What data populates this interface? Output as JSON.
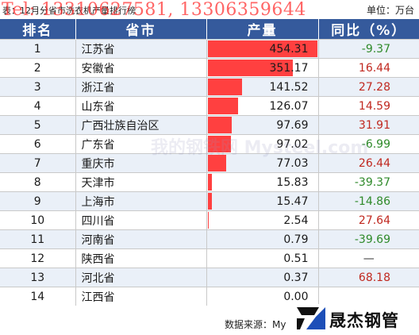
{
  "caption": "表：12月分省市洗衣机产量排行榜",
  "unit": "单位：万台",
  "watermark_phone": "Tel: 13310627581, 13306359644",
  "watermark_center": "我的钢铁网 Mysteel.com",
  "headers": [
    "排名",
    "省市",
    "产量",
    "同比（%）"
  ],
  "rows": [
    {
      "rank": "1",
      "province": "江苏省",
      "output": "454.31",
      "yoy": "-9.37"
    },
    {
      "rank": "2",
      "province": "安徽省",
      "output": "351.17",
      "yoy": "16.44"
    },
    {
      "rank": "3",
      "province": "浙江省",
      "output": "141.52",
      "yoy": "27.28"
    },
    {
      "rank": "4",
      "province": "山东省",
      "output": "126.07",
      "yoy": "14.59"
    },
    {
      "rank": "5",
      "province": "广西壮族自治区",
      "output": "97.69",
      "yoy": "31.91"
    },
    {
      "rank": "6",
      "province": "广东省",
      "output": "97.02",
      "yoy": "-6.99"
    },
    {
      "rank": "7",
      "province": "重庆市",
      "output": "77.03",
      "yoy": "26.44"
    },
    {
      "rank": "8",
      "province": "天津市",
      "output": "15.83",
      "yoy": "-39.37"
    },
    {
      "rank": "9",
      "province": "上海市",
      "output": "15.47",
      "yoy": "-14.86"
    },
    {
      "rank": "10",
      "province": "四川省",
      "output": "2.54",
      "yoy": "27.64"
    },
    {
      "rank": "11",
      "province": "河南省",
      "output": "0.79",
      "yoy": "-39.69"
    },
    {
      "rank": "12",
      "province": "陕西省",
      "output": "0.51",
      "yoy": "—"
    },
    {
      "rank": "13",
      "province": "河北省",
      "output": "0.37",
      "yoy": "68.18"
    },
    {
      "rank": "14",
      "province": "江西省",
      "output": "0.00",
      "yoy": ""
    }
  ],
  "source": "数据来源：My",
  "logo_text": "晟杰钢管",
  "colors": {
    "header_bg": "#355a9c",
    "bar": "#ff4040",
    "positive": "#c0281f",
    "negative": "#2f8a2a"
  }
}
